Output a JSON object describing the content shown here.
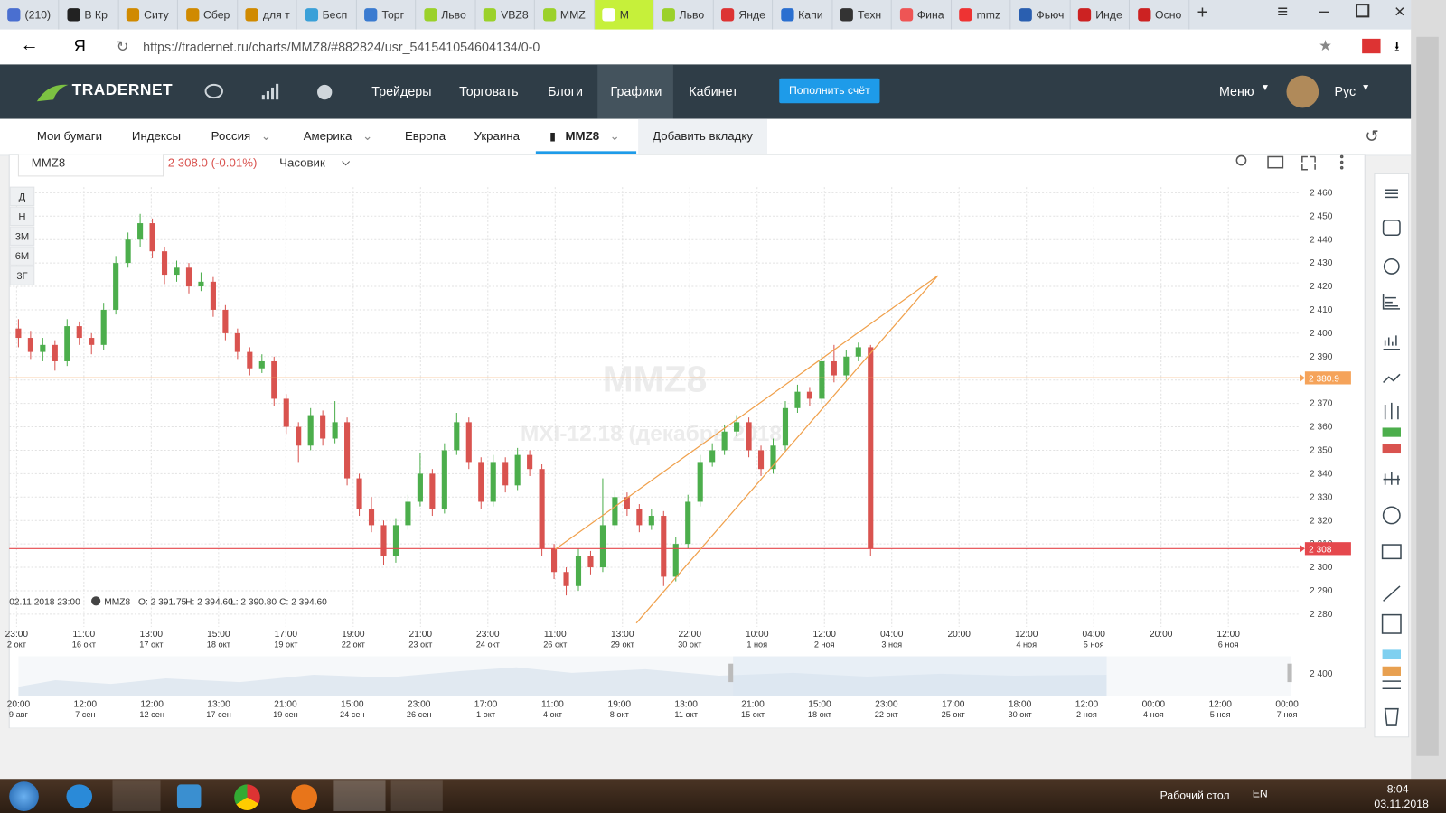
{
  "browser": {
    "tabs": [
      "(210)",
      "В Кр",
      "Ситу",
      "Сбер",
      "для т",
      "Бесп",
      "Торг",
      "Льво",
      "VBZ8",
      "MMZ",
      "M",
      "Льво",
      "Янде",
      "Капи",
      "Техн",
      "Фина",
      "mmz",
      "Фьюч",
      "Инде",
      "Осно"
    ],
    "active_tab": 10,
    "url": "https://tradernet.ru/charts/MMZ8/#882824/usr_541541054604134/0-0",
    "yandex": "Я"
  },
  "nav": {
    "logo": "TRADERNET",
    "items": [
      "Трейдеры",
      "Торговать",
      "Блоги",
      "Графики",
      "Кабинет"
    ],
    "active_item": 3,
    "button": "Пополнить счёт",
    "menu": "Меню",
    "lang": "Рус"
  },
  "subtabs": {
    "items": [
      "Мои бумаги",
      "Индексы",
      "Россия",
      "Америка",
      "Европа",
      "Украина",
      "MMZ8"
    ],
    "add": "Добавить вкладку"
  },
  "chart_data": {
    "type": "candlestick",
    "symbol": "MMZ8",
    "price_change": "2 308.0 (-0.01%)",
    "interval": "Часовик",
    "periods": [
      "Д",
      "Н",
      "3М",
      "6М",
      "3Г"
    ],
    "watermark": "MMZ8",
    "watermark_sub": "MXI-12.18 (декабрь 2018)",
    "legend_time": "02.11.2018 23:00",
    "legend_symbol": "MMZ8",
    "legend_ohlc": [
      "O: 2 391.75",
      "H: 2 394.60",
      "L: 2 390.80",
      "C: 2 394.60"
    ],
    "up_color": "#4cae4c",
    "down_color": "#d9534f",
    "grid": true,
    "ylim": [
      2274.6,
      2462.4
    ],
    "yticks": [
      {
        "value": 2280,
        "label": "2 280"
      },
      {
        "value": 2290,
        "label": "2 290"
      },
      {
        "value": 2300,
        "label": "2 300"
      },
      {
        "value": 2310,
        "label": "2 310"
      },
      {
        "value": 2320,
        "label": "2 320"
      },
      {
        "value": 2330,
        "label": "2 330"
      },
      {
        "value": 2340,
        "label": "2 340"
      },
      {
        "value": 2350,
        "label": "2 350"
      },
      {
        "value": 2360,
        "label": "2 360"
      },
      {
        "value": 2370,
        "label": "2 370"
      },
      {
        "value": 2380,
        "label": "2 380"
      },
      {
        "value": 2390,
        "label": "2 390"
      },
      {
        "value": 2400,
        "label": "2 400"
      },
      {
        "value": 2410,
        "label": "2 410"
      },
      {
        "value": 2420,
        "label": "2 420"
      },
      {
        "value": 2430,
        "label": "2 430"
      },
      {
        "value": 2440,
        "label": "2 440"
      },
      {
        "value": 2450,
        "label": "2 450"
      },
      {
        "value": 2460,
        "label": "2 460"
      }
    ],
    "price_lines": [
      {
        "value": 2380.9,
        "label": "2 380.9",
        "color": "#f5a35a"
      },
      {
        "value": 2308,
        "label": "2 308",
        "color": "#e5484d"
      }
    ],
    "candles": [
      [
        2402,
        2406,
        2394,
        2398
      ],
      [
        2398,
        2401,
        2389,
        2392
      ],
      [
        2392,
        2398,
        2388,
        2395
      ],
      [
        2395,
        2397,
        2384,
        2388
      ],
      [
        2388,
        2406,
        2386,
        2403
      ],
      [
        2403,
        2405,
        2395,
        2398
      ],
      [
        2398,
        2400,
        2391,
        2395
      ],
      [
        2395,
        2413,
        2393,
        2410
      ],
      [
        2410,
        2433,
        2408,
        2430
      ],
      [
        2430,
        2443,
        2428,
        2440
      ],
      [
        2440,
        2451,
        2437,
        2447
      ],
      [
        2447,
        2449,
        2432,
        2435
      ],
      [
        2435,
        2437,
        2421,
        2425
      ],
      [
        2425,
        2431,
        2422,
        2428
      ],
      [
        2428,
        2430,
        2417,
        2420
      ],
      [
        2420,
        2426,
        2418,
        2422
      ],
      [
        2422,
        2424,
        2407,
        2410
      ],
      [
        2410,
        2412,
        2397,
        2400
      ],
      [
        2400,
        2402,
        2389,
        2392
      ],
      [
        2392,
        2394,
        2382,
        2385
      ],
      [
        2385,
        2391,
        2383,
        2388
      ],
      [
        2388,
        2390,
        2369,
        2372
      ],
      [
        2372,
        2374,
        2357,
        2360
      ],
      [
        2360,
        2362,
        2345,
        2352
      ],
      [
        2352,
        2368,
        2350,
        2365
      ],
      [
        2365,
        2367,
        2352,
        2355
      ],
      [
        2355,
        2371,
        2353,
        2362
      ],
      [
        2362,
        2364,
        2335,
        2338
      ],
      [
        2338,
        2340,
        2322,
        2325
      ],
      [
        2325,
        2330,
        2315,
        2318
      ],
      [
        2318,
        2320,
        2301,
        2305
      ],
      [
        2305,
        2321,
        2302,
        2318
      ],
      [
        2318,
        2331,
        2316,
        2328
      ],
      [
        2328,
        2349,
        2326,
        2340
      ],
      [
        2340,
        2342,
        2322,
        2325
      ],
      [
        2325,
        2353,
        2323,
        2350
      ],
      [
        2350,
        2366,
        2348,
        2362
      ],
      [
        2362,
        2364,
        2342,
        2345
      ],
      [
        2345,
        2347,
        2325,
        2328
      ],
      [
        2328,
        2348,
        2326,
        2345
      ],
      [
        2345,
        2347,
        2332,
        2335
      ],
      [
        2335,
        2351,
        2333,
        2348
      ],
      [
        2348,
        2350,
        2339,
        2342
      ],
      [
        2342,
        2344,
        2305,
        2308
      ],
      [
        2308,
        2310,
        2295,
        2298
      ],
      [
        2298,
        2300,
        2288,
        2292
      ],
      [
        2292,
        2308,
        2290,
        2305
      ],
      [
        2305,
        2307,
        2297,
        2300
      ],
      [
        2300,
        2338,
        2298,
        2318
      ],
      [
        2318,
        2333,
        2316,
        2330
      ],
      [
        2330,
        2332,
        2322,
        2325
      ],
      [
        2325,
        2327,
        2315,
        2318
      ],
      [
        2318,
        2325,
        2316,
        2322
      ],
      [
        2322,
        2324,
        2292,
        2296
      ],
      [
        2296,
        2313,
        2294,
        2310
      ],
      [
        2310,
        2331,
        2308,
        2328
      ],
      [
        2328,
        2348,
        2326,
        2345
      ],
      [
        2345,
        2353,
        2343,
        2350
      ],
      [
        2350,
        2361,
        2348,
        2358
      ],
      [
        2358,
        2365,
        2356,
        2362
      ],
      [
        2362,
        2364,
        2347,
        2350
      ],
      [
        2350,
        2352,
        2339,
        2342
      ],
      [
        2342,
        2355,
        2340,
        2352
      ],
      [
        2352,
        2371,
        2350,
        2368
      ],
      [
        2368,
        2378,
        2366,
        2375
      ],
      [
        2375,
        2377,
        2369,
        2372
      ],
      [
        2372,
        2391,
        2370,
        2388
      ],
      [
        2388,
        2395,
        2379,
        2382
      ],
      [
        2382,
        2393,
        2380,
        2390
      ],
      [
        2390,
        2396,
        2388,
        2394
      ],
      [
        2394,
        2395,
        2305,
        2308
      ]
    ],
    "x_labels": [
      {
        "time": "23:00",
        "date": "2 окт"
      },
      {
        "time": "11:00",
        "date": "16 окт"
      },
      {
        "time": "13:00",
        "date": "17 окт"
      },
      {
        "time": "15:00",
        "date": "18 окт"
      },
      {
        "time": "17:00",
        "date": "19 окт"
      },
      {
        "time": "19:00",
        "date": "22 окт"
      },
      {
        "time": "21:00",
        "date": "23 окт"
      },
      {
        "time": "23:00",
        "date": "24 окт"
      },
      {
        "time": "11:00",
        "date": "26 окт"
      },
      {
        "time": "13:00",
        "date": "29 окт"
      },
      {
        "time": "22:00",
        "date": "30 окт"
      },
      {
        "time": "10:00",
        "date": "1 ноя"
      },
      {
        "time": "12:00",
        "date": "2 ноя"
      },
      {
        "time": "04:00",
        "date": "3 ноя"
      },
      {
        "time": "20:00",
        "date": null
      },
      {
        "time": "12:00",
        "date": "4 ноя"
      },
      {
        "time": "04:00",
        "date": "5 ноя"
      },
      {
        "time": "20:00",
        "date": null
      },
      {
        "time": "12:00",
        "date": "6 ноя"
      }
    ],
    "navigator_label": "2 400",
    "navigator_labels": [
      {
        "time": "20:00",
        "date": "9 авг"
      },
      {
        "time": "12:00",
        "date": "7 сен"
      },
      {
        "time": "12:00",
        "date": "12 сен"
      },
      {
        "time": "13:00",
        "date": "17 сен"
      },
      {
        "time": "21:00",
        "date": "19 сен"
      },
      {
        "time": "15:00",
        "date": "24 сен"
      },
      {
        "time": "23:00",
        "date": "26 сен"
      },
      {
        "time": "17:00",
        "date": "1 окт"
      },
      {
        "time": "11:00",
        "date": "4 окт"
      },
      {
        "time": "19:00",
        "date": "8 окт"
      },
      {
        "time": "13:00",
        "date": "11 окт"
      },
      {
        "time": "21:00",
        "date": "15 окт"
      },
      {
        "time": "15:00",
        "date": "18 окт"
      },
      {
        "time": "23:00",
        "date": "22 окт"
      },
      {
        "time": "17:00",
        "date": "25 окт"
      },
      {
        "time": "18:00",
        "date": "30 окт"
      },
      {
        "time": "12:00",
        "date": "2 ноя"
      },
      {
        "time": "00:00",
        "date": "4 ноя"
      },
      {
        "time": "12:00",
        "date": "5 ноя"
      },
      {
        "time": "00:00",
        "date": "7 ноя"
      }
    ]
  },
  "taskbar": {
    "desktop": "Рабочий стол",
    "lang": "EN",
    "time": "8:04",
    "date": "03.11.2018"
  }
}
